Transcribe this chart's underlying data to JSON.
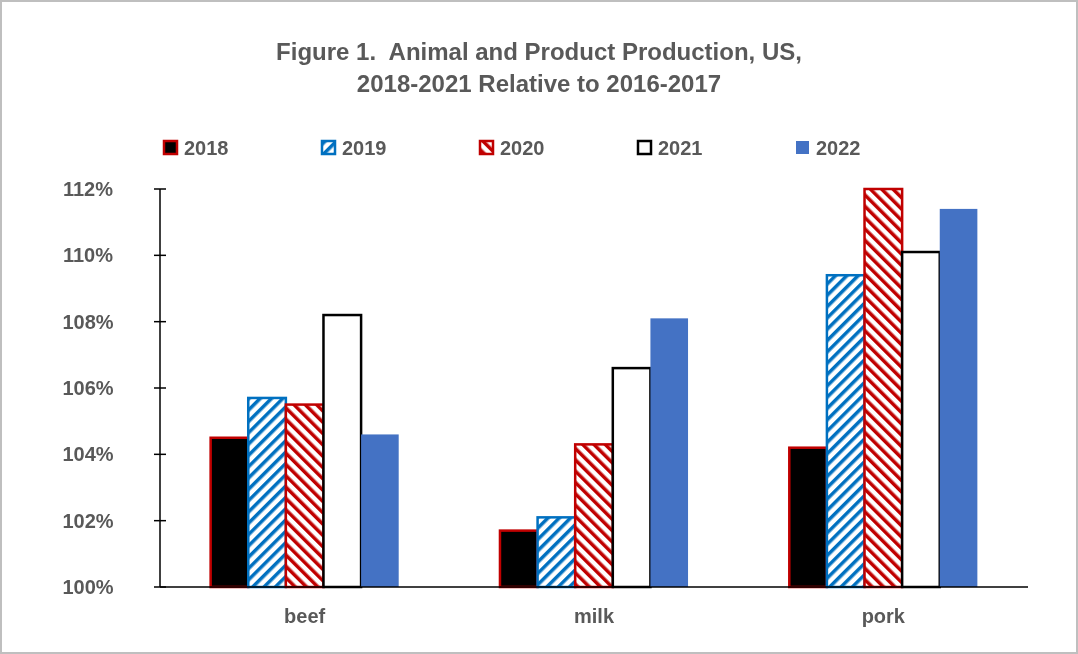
{
  "chart_data": {
    "type": "bar",
    "title": "Figure 1.  Animal and Product Production, US,\n2018-2021 Relative to 2016-2017",
    "categories": [
      "beef",
      "milk",
      "pork"
    ],
    "series": [
      {
        "name": "2018",
        "color": "#000000",
        "values": [
          104.5,
          101.7,
          104.2
        ]
      },
      {
        "name": "2019",
        "color": "#0070c0",
        "values": [
          105.7,
          102.1,
          109.4
        ]
      },
      {
        "name": "2020",
        "color": "#c00000",
        "values": [
          105.5,
          104.3,
          112.0
        ]
      },
      {
        "name": "2021",
        "color": "#ffffff",
        "values": [
          108.2,
          106.6,
          110.1
        ]
      },
      {
        "name": "2022",
        "color": "#4472c4",
        "values": [
          104.6,
          108.1,
          111.4
        ]
      }
    ],
    "ylim": [
      100,
      112
    ],
    "yticks": [
      {
        "value": 100,
        "label": "100%"
      },
      {
        "value": 102,
        "label": "102%"
      },
      {
        "value": 104,
        "label": "104%"
      },
      {
        "value": 106,
        "label": "106%"
      },
      {
        "value": 108,
        "label": "108%"
      },
      {
        "value": 110,
        "label": "110%"
      },
      {
        "value": 112,
        "label": "112%"
      }
    ],
    "legend": "top",
    "grid": false
  }
}
